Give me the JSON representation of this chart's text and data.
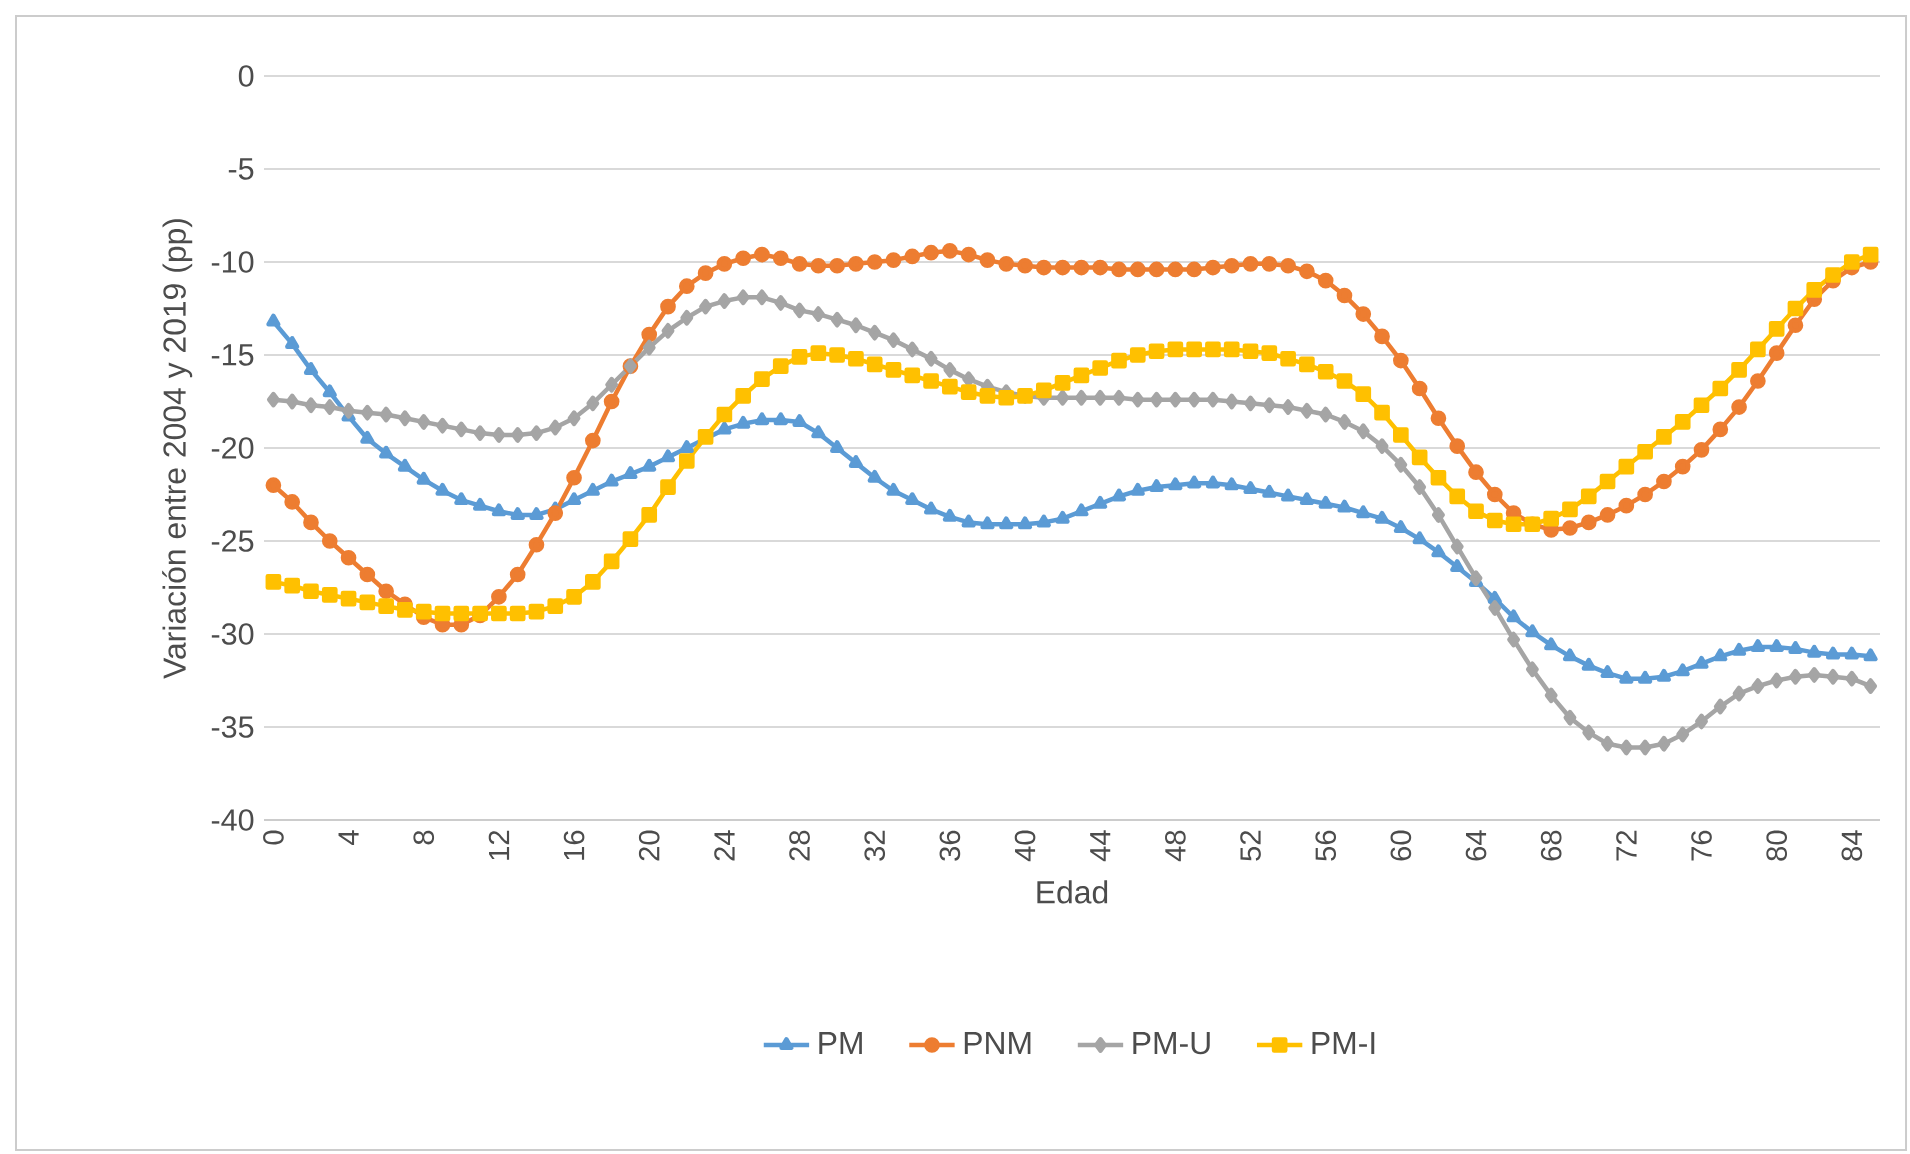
{
  "chart_data": {
    "type": "line",
    "xlabel": "Edad",
    "ylabel": "Variación entre 2004 y 2019 (pp)",
    "x": [
      0,
      1,
      2,
      3,
      4,
      5,
      6,
      7,
      8,
      9,
      10,
      11,
      12,
      13,
      14,
      15,
      16,
      17,
      18,
      19,
      20,
      21,
      22,
      23,
      24,
      25,
      26,
      27,
      28,
      29,
      30,
      31,
      32,
      33,
      34,
      35,
      36,
      37,
      38,
      39,
      40,
      41,
      42,
      43,
      44,
      45,
      46,
      47,
      48,
      49,
      50,
      51,
      52,
      53,
      54,
      55,
      56,
      57,
      58,
      59,
      60,
      61,
      62,
      63,
      64,
      65,
      66,
      67,
      68,
      69,
      70,
      71,
      72,
      73,
      74,
      75,
      76,
      77,
      78,
      79,
      80,
      81,
      82,
      83,
      84,
      85
    ],
    "xlim": [
      -0.5,
      85.5
    ],
    "xticks": [
      0,
      4,
      8,
      12,
      16,
      20,
      24,
      28,
      32,
      36,
      40,
      44,
      48,
      52,
      56,
      60,
      64,
      68,
      72,
      76,
      80,
      84
    ],
    "ylim": [
      -40,
      0
    ],
    "yticks": [
      0,
      -5,
      -10,
      -15,
      -20,
      -25,
      -30,
      -35,
      -40
    ],
    "grid": "y",
    "legend": "bottom",
    "series": [
      {
        "name": "PM",
        "color": "#5b9bd5",
        "marker": "triangle",
        "values": [
          -13.2,
          -14.4,
          -15.8,
          -17,
          -18.3,
          -19.5,
          -20.3,
          -21.0,
          -21.7,
          -22.3,
          -22.8,
          -23.1,
          -23.4,
          -23.6,
          -23.6,
          -23.3,
          -22.8,
          -22.3,
          -21.8,
          -21.4,
          -21.0,
          -20.5,
          -20.0,
          -19.5,
          -19.0,
          -18.7,
          -18.5,
          -18.5,
          -18.6,
          -19.2,
          -20.0,
          -20.8,
          -21.6,
          -22.3,
          -22.8,
          -23.3,
          -23.7,
          -24.0,
          -24.1,
          -24.1,
          -24.1,
          -24.0,
          -23.8,
          -23.4,
          -23.0,
          -22.6,
          -22.3,
          -22.1,
          -22.0,
          -21.9,
          -21.9,
          -22.0,
          -22.2,
          -22.4,
          -22.6,
          -22.8,
          -23.0,
          -23.2,
          -23.5,
          -23.8,
          -24.3,
          -24.9,
          -25.6,
          -26.4,
          -27.2,
          -28.1,
          -29.1,
          -29.9,
          -30.6,
          -31.2,
          -31.7,
          -32.1,
          -32.4,
          -32.4,
          -32.3,
          -32.0,
          -31.6,
          -31.2,
          -30.9,
          -30.7,
          -30.7,
          -30.8,
          -31.0,
          -31.1,
          -31.1,
          -31.2
        ]
      },
      {
        "name": "PNM",
        "color": "#ed7d31",
        "marker": "circle",
        "values": [
          -22.0,
          -22.9,
          -24.0,
          -25.0,
          -25.9,
          -26.8,
          -27.7,
          -28.4,
          -29.1,
          -29.5,
          -29.5,
          -29.0,
          -28.0,
          -26.8,
          -25.2,
          -23.5,
          -21.6,
          -19.6,
          -17.5,
          -15.6,
          -13.9,
          -12.4,
          -11.3,
          -10.6,
          -10.1,
          -9.8,
          -9.6,
          -9.8,
          -10.1,
          -10.2,
          -10.2,
          -10.1,
          -10.0,
          -9.9,
          -9.7,
          -9.5,
          -9.4,
          -9.6,
          -9.9,
          -10.1,
          -10.2,
          -10.3,
          -10.3,
          -10.3,
          -10.3,
          -10.4,
          -10.4,
          -10.4,
          -10.4,
          -10.4,
          -10.3,
          -10.2,
          -10.1,
          -10.1,
          -10.2,
          -10.5,
          -11.0,
          -11.8,
          -12.8,
          -14.0,
          -15.3,
          -16.8,
          -18.4,
          -19.9,
          -21.3,
          -22.5,
          -23.5,
          -24.1,
          -24.4,
          -24.3,
          -24.0,
          -23.6,
          -23.1,
          -22.5,
          -21.8,
          -21.0,
          -20.1,
          -19.0,
          -17.8,
          -16.4,
          -14.9,
          -13.4,
          -12.0,
          -11.0,
          -10.3,
          -10.0
        ]
      },
      {
        "name": "PM-U",
        "color": "#a5a5a5",
        "marker": "diamond",
        "values": [
          -17.4,
          -17.5,
          -17.7,
          -17.8,
          -18.0,
          -18.1,
          -18.2,
          -18.4,
          -18.6,
          -18.8,
          -19.0,
          -19.2,
          -19.3,
          -19.3,
          -19.2,
          -18.9,
          -18.4,
          -17.6,
          -16.6,
          -15.6,
          -14.6,
          -13.7,
          -13.0,
          -12.4,
          -12.1,
          -11.9,
          -11.9,
          -12.2,
          -12.6,
          -12.8,
          -13.1,
          -13.4,
          -13.8,
          -14.2,
          -14.7,
          -15.2,
          -15.8,
          -16.3,
          -16.7,
          -17.0,
          -17.2,
          -17.3,
          -17.3,
          -17.3,
          -17.3,
          -17.3,
          -17.4,
          -17.4,
          -17.4,
          -17.4,
          -17.4,
          -17.5,
          -17.6,
          -17.7,
          -17.8,
          -18.0,
          -18.2,
          -18.6,
          -19.1,
          -19.9,
          -20.9,
          -22.1,
          -23.6,
          -25.3,
          -27.0,
          -28.6,
          -30.3,
          -31.9,
          -33.3,
          -34.5,
          -35.3,
          -35.9,
          -36.1,
          -36.1,
          -35.9,
          -35.4,
          -34.7,
          -33.9,
          -33.2,
          -32.8,
          -32.5,
          -32.3,
          -32.2,
          -32.3,
          -32.4,
          -32.8
        ]
      },
      {
        "name": "PM-I",
        "color": "#ffc000",
        "marker": "square",
        "values": [
          -27.2,
          -27.4,
          -27.7,
          -27.9,
          -28.1,
          -28.3,
          -28.5,
          -28.7,
          -28.8,
          -28.9,
          -28.9,
          -28.9,
          -28.9,
          -28.9,
          -28.8,
          -28.5,
          -28.0,
          -27.2,
          -26.1,
          -24.9,
          -23.6,
          -22.1,
          -20.7,
          -19.4,
          -18.2,
          -17.2,
          -16.3,
          -15.6,
          -15.1,
          -14.9,
          -15.0,
          -15.2,
          -15.5,
          -15.8,
          -16.1,
          -16.4,
          -16.7,
          -17.0,
          -17.2,
          -17.3,
          -17.2,
          -16.9,
          -16.5,
          -16.1,
          -15.7,
          -15.3,
          -15.0,
          -14.8,
          -14.7,
          -14.7,
          -14.7,
          -14.7,
          -14.8,
          -14.9,
          -15.2,
          -15.5,
          -15.9,
          -16.4,
          -17.1,
          -18.1,
          -19.3,
          -20.5,
          -21.6,
          -22.6,
          -23.4,
          -23.9,
          -24.1,
          -24.1,
          -23.8,
          -23.3,
          -22.6,
          -21.8,
          -21.0,
          -20.2,
          -19.4,
          -18.6,
          -17.7,
          -16.8,
          -15.8,
          -14.7,
          -13.6,
          -12.5,
          -11.5,
          -10.7,
          -10.0,
          -9.6
        ]
      }
    ]
  }
}
